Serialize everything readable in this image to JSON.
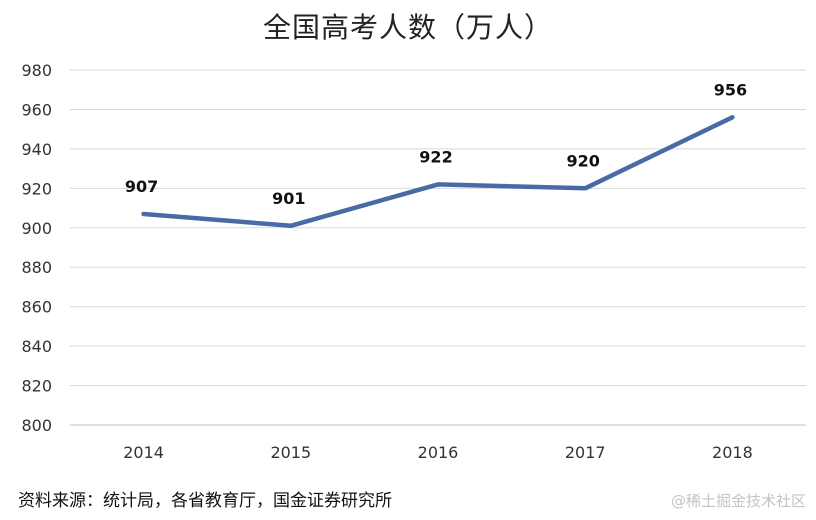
{
  "chart_data": {
    "type": "line",
    "title": "全国高考人数（万人）",
    "x": [
      "2014",
      "2015",
      "2016",
      "2017",
      "2018"
    ],
    "series": [
      {
        "values": [
          907,
          901,
          922,
          920,
          956
        ]
      }
    ],
    "data_labels": [
      "907",
      "901",
      "922",
      "920",
      "956"
    ],
    "ylim": [
      800,
      980
    ],
    "yticks": [
      800,
      820,
      840,
      860,
      880,
      900,
      920,
      940,
      960,
      980
    ],
    "grid": true,
    "line_color": "#4a6aa6"
  },
  "source_note": "资料来源：统计局，各省教育厅，国金证券研究所",
  "watermark": "@稀土掘金技术社区"
}
